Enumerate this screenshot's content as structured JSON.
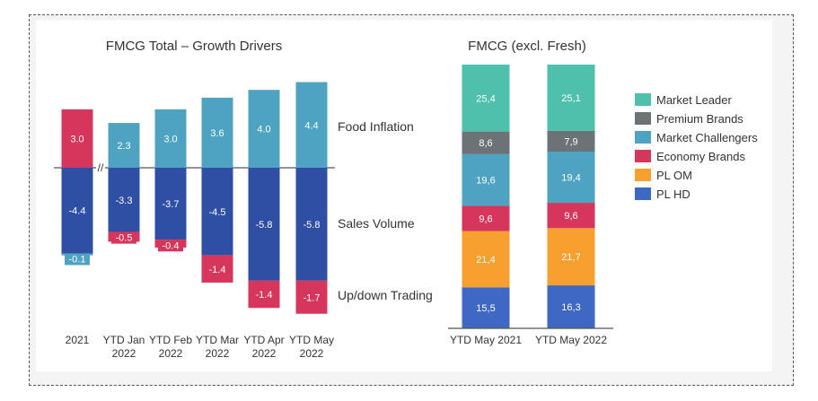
{
  "chart_data": [
    {
      "type": "bar",
      "subtype": "stacked-diverging",
      "title": "FMCG Total – Growth Drivers",
      "categories": [
        [
          "2021"
        ],
        [
          "YTD Jan",
          "2022"
        ],
        [
          "YTD Feb",
          "2022"
        ],
        [
          "YTD Mar",
          "2022"
        ],
        [
          "YTD Apr",
          "2022"
        ],
        [
          "YTD May",
          "2022"
        ]
      ],
      "series": [
        {
          "name": "Food Inflation",
          "values": [
            3.0,
            2.3,
            3.0,
            3.6,
            4.0,
            4.4
          ],
          "labels": [
            "3.0",
            "2.3",
            "3.0",
            "3.6",
            "4.0",
            "4.4"
          ],
          "colors": [
            "#d6365b",
            "#4fa3c2",
            "#4fa3c2",
            "#4fa3c2",
            "#4fa3c2",
            "#4fa3c2"
          ]
        },
        {
          "name": "Sales Volume",
          "values": [
            -4.4,
            -3.3,
            -3.7,
            -4.5,
            -5.8,
            -5.8
          ],
          "labels": [
            "-4.4",
            "-3.3",
            "-3.7",
            "-4.5",
            "-5.8",
            "-5.8"
          ],
          "color": "#2f4fa5"
        },
        {
          "name": "Up/down Trading",
          "values": [
            -0.1,
            -0.5,
            -0.4,
            -1.4,
            -1.4,
            -1.7
          ],
          "labels": [
            "-0.1",
            "-0.5",
            "-0.4",
            "-1.4",
            "-1.4",
            "-1.7"
          ],
          "colors": [
            "#4fa3c2",
            "#d6365b",
            "#d6365b",
            "#d6365b",
            "#d6365b",
            "#d6365b"
          ]
        }
      ],
      "axis_break_marker": "//",
      "grid": false
    },
    {
      "type": "bar",
      "subtype": "stacked-100",
      "title": "FMCG (excl. Fresh)",
      "categories": [
        "YTD May 2021",
        "YTD May 2022"
      ],
      "series": [
        {
          "name": "PL HD",
          "values": [
            15.5,
            16.3
          ],
          "labels": [
            "15,5",
            "16,3"
          ],
          "color": "#3f68c4"
        },
        {
          "name": "PL OM",
          "values": [
            21.4,
            21.7
          ],
          "labels": [
            "21,4",
            "21,7"
          ],
          "color": "#f7a030"
        },
        {
          "name": "Economy Brands",
          "values": [
            9.6,
            9.6
          ],
          "labels": [
            "9,6",
            "9,6"
          ],
          "color": "#d6365b"
        },
        {
          "name": "Market Challengers",
          "values": [
            19.6,
            19.4
          ],
          "labels": [
            "19,6",
            "19,4"
          ],
          "color": "#4fa3c2"
        },
        {
          "name": "Premium Brands",
          "values": [
            8.6,
            7.9
          ],
          "labels": [
            "8,6",
            "7,9"
          ],
          "color": "#6c7377"
        },
        {
          "name": "Market Leader",
          "values": [
            25.4,
            25.1
          ],
          "labels": [
            "25,4",
            "25,1"
          ],
          "color": "#4fc0ac"
        }
      ],
      "legend": {
        "placement": "right",
        "order": [
          "Market Leader",
          "Premium Brands",
          "Market Challengers",
          "Economy Brands",
          "PL OM",
          "PL HD"
        ]
      },
      "grid": false
    }
  ]
}
